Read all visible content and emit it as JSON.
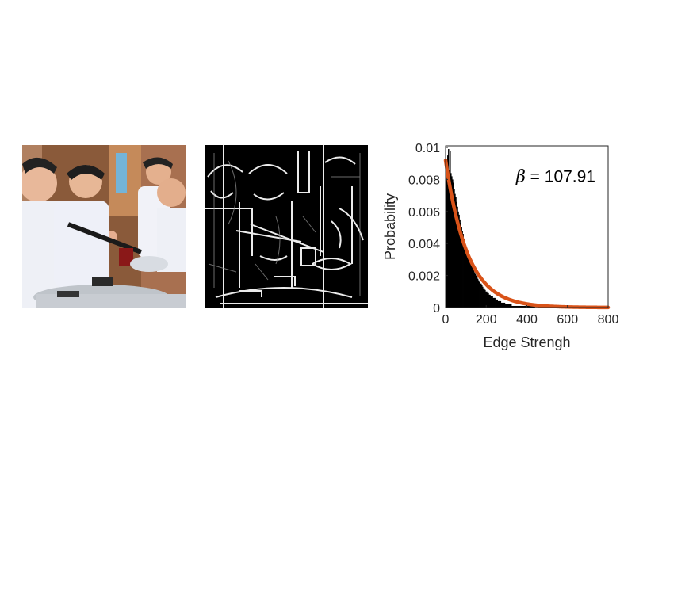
{
  "images": {
    "photo_name": "photo",
    "edge_map_name": "edge-map"
  },
  "chart_data": {
    "type": "bar",
    "title": "",
    "xlabel": "Edge Strengh",
    "ylabel": "Probability",
    "xlim": [
      0,
      800
    ],
    "ylim": [
      0,
      0.0101
    ],
    "xticks": [
      0,
      200,
      400,
      600,
      800
    ],
    "yticks": [
      0,
      0.002,
      0.004,
      0.006,
      0.008,
      0.01
    ],
    "ytick_labels": [
      "0",
      "0.002",
      "0.004",
      "0.006",
      "0.008",
      "0.01"
    ],
    "grid": false,
    "legend": "none",
    "histogram": {
      "name": "",
      "bin_width": 4,
      "x_start": 0,
      "values": [
        0.0093,
        0.0089,
        0.0095,
        0.0099,
        0.0086,
        0.0098,
        0.0084,
        0.0082,
        0.008,
        0.0078,
        0.0074,
        0.0071,
        0.0069,
        0.0066,
        0.0063,
        0.006,
        0.0058,
        0.0055,
        0.0053,
        0.005,
        0.0048,
        0.0046,
        0.0043,
        0.0041,
        0.0039,
        0.0037,
        0.0036,
        0.0034,
        0.0032,
        0.0031,
        0.0029,
        0.0028,
        0.0026,
        0.0025,
        0.0024,
        0.0022,
        0.0021,
        0.002,
        0.0019,
        0.0018,
        0.0017,
        0.0016,
        0.0015,
        0.0015,
        0.0014,
        0.0013,
        0.0012,
        0.0012,
        0.0011,
        0.001,
        0.001,
        0.0009,
        0.0009,
        0.0008,
        0.0008,
        0.0007,
        0.0007,
        0.0007,
        0.0006,
        0.0006,
        0.0006,
        0.0005,
        0.0005,
        0.0005,
        0.0004,
        0.0004,
        0.0004,
        0.0004,
        0.0003,
        0.0003,
        0.0003,
        0.0003,
        0.0003,
        0.0002,
        0.0002,
        0.0002,
        0.0002,
        0.0002,
        0.0002,
        0.0002,
        0.0002,
        0.0001,
        0.0001,
        0.0001,
        0.0001,
        0.0001,
        0.0001,
        0.0001,
        0.0001,
        0.0001,
        0.0001,
        0.0001,
        0.0001,
        0.0001,
        0.0001,
        0.0001,
        0.0001,
        0.0001,
        0.0001,
        0.0001,
        0.0001,
        0.0001,
        0.0001,
        0.0001,
        0.0001,
        0.0001,
        0.0001,
        0.0001,
        0.0001,
        0.0001
      ],
      "color": "#000000"
    },
    "fit": {
      "name": "",
      "model": "exponential",
      "amplitude": 0.0092,
      "beta": 107.91,
      "x_start": 0,
      "x_end": 800,
      "color": "#d95319"
    },
    "annotation": {
      "symbol": "β",
      "text": " = 107.91",
      "x": 560,
      "y": 0.0082
    }
  }
}
